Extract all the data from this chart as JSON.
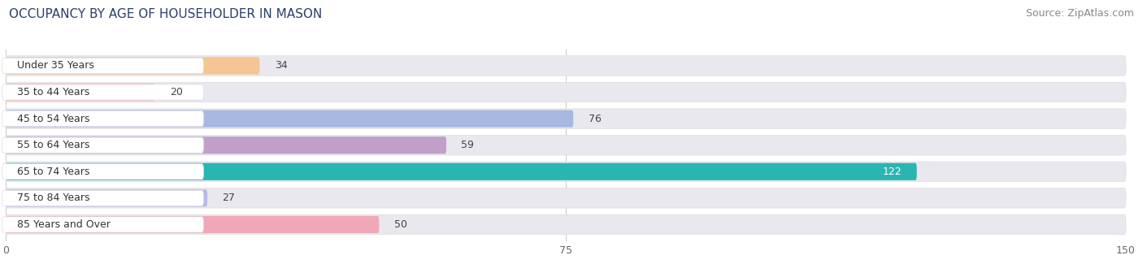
{
  "title": "OCCUPANCY BY AGE OF HOUSEHOLDER IN MASON",
  "source": "Source: ZipAtlas.com",
  "categories": [
    "Under 35 Years",
    "35 to 44 Years",
    "45 to 54 Years",
    "55 to 64 Years",
    "65 to 74 Years",
    "75 to 84 Years",
    "85 Years and Over"
  ],
  "values": [
    34,
    20,
    76,
    59,
    122,
    27,
    50
  ],
  "bar_colors": [
    "#f5c592",
    "#f0a0a0",
    "#a8b8e0",
    "#c0a0c8",
    "#2ab5b0",
    "#b8b8e8",
    "#f0a8b8"
  ],
  "xlim": [
    0,
    150
  ],
  "xticks": [
    0,
    75,
    150
  ],
  "title_fontsize": 11,
  "source_fontsize": 9,
  "tick_fontsize": 9,
  "bar_label_fontsize": 9,
  "category_fontsize": 9,
  "bar_height": 0.65,
  "figure_bg": "#ffffff",
  "bar_row_bg": "#f0f0f0",
  "bar_bg_color": "#e8e8ee",
  "grid_color": "#cccccc",
  "label_pill_bg": "#ffffff"
}
